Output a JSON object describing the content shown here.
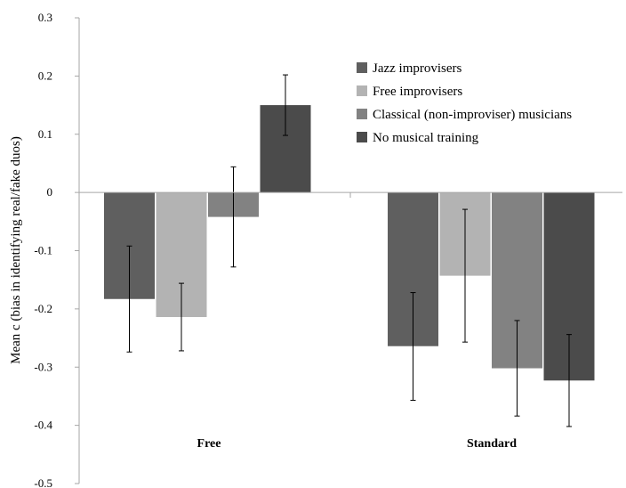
{
  "chart_data": {
    "type": "bar",
    "ylabel": "Mean c (bias in identifying real/fake duos)",
    "xlabel": "",
    "ylim": [
      -0.5,
      0.3
    ],
    "y_ticks": [
      0.3,
      0.2,
      0.1,
      0,
      -0.1,
      -0.2,
      -0.3,
      -0.4,
      -0.5
    ],
    "y_tick_labels": [
      "0.3",
      "0.2",
      "0.1",
      "0",
      "-0.1",
      "-0.2",
      "-0.3",
      "-0.4",
      "-0.5"
    ],
    "categories": [
      "Free",
      "Standard"
    ],
    "legend_position": "top-right",
    "grid": false,
    "series": [
      {
        "name": "Jazz improvisers",
        "color": "#5f5f5f",
        "values": [
          -0.183,
          -0.264
        ],
        "error": [
          [
            -0.274,
            -0.092
          ],
          [
            -0.357,
            -0.172
          ]
        ]
      },
      {
        "name": "Free improvisers",
        "color": "#b3b3b3",
        "values": [
          -0.214,
          -0.143
        ],
        "error": [
          [
            -0.272,
            -0.156
          ],
          [
            -0.257,
            -0.029
          ]
        ]
      },
      {
        "name": "Classical (non-improviser) musicians",
        "color": "#828282",
        "values": [
          -0.042,
          -0.302
        ],
        "error": [
          [
            -0.128,
            0.044
          ],
          [
            -0.384,
            -0.22
          ]
        ]
      },
      {
        "name": "No musical training",
        "color": "#4b4b4b",
        "values": [
          0.15,
          -0.323
        ],
        "error": [
          [
            0.098,
            0.202
          ],
          [
            -0.402,
            -0.244
          ]
        ]
      }
    ]
  }
}
